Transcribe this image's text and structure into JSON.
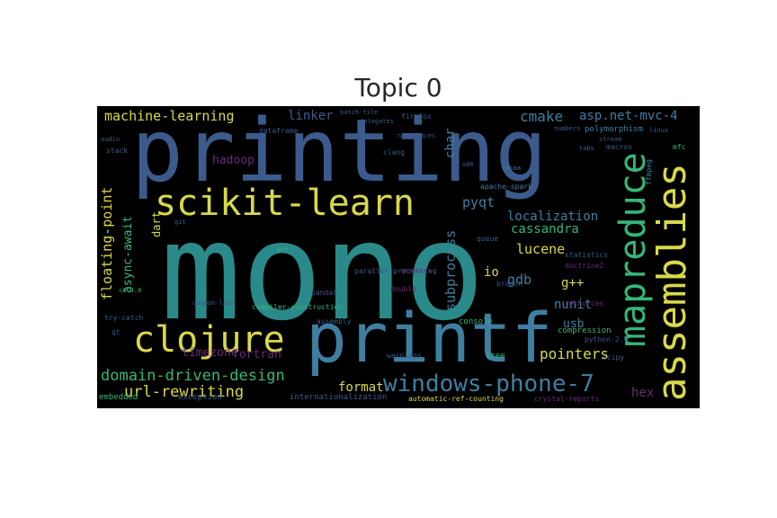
{
  "title": "Topic 0",
  "colors": {
    "background": "#000000",
    "palette": [
      "#3b5b8c",
      "#2a8a8a",
      "#d9d84a",
      "#35b779",
      "#6a2a78",
      "#3e7fa1"
    ]
  },
  "words": [
    "mono",
    "printing",
    "printf",
    "scikit-learn",
    "assemblies",
    "mapreduce",
    "clojure",
    "windows-phone-7",
    "domain-driven-design",
    "url-rewriting",
    "machine-learning",
    "cmake",
    "asp.net-mvc-4",
    "localization",
    "cassandra",
    "pyqt",
    "lucene",
    "gdb",
    "nunit",
    "g++",
    "pointers",
    "format",
    "hex",
    "usb",
    "io",
    "subprocess",
    "floating-point",
    "async-await",
    "dart",
    "hadoop",
    "linker",
    "timezone",
    "fortran",
    "char",
    "console",
    "compression",
    "tree",
    "internationalization",
    "exception",
    "embedded",
    "automatic-ref-counting",
    "crystal-reports",
    "warnings",
    "assembly",
    "double",
    "pandas",
    "statistics",
    "doctrine2",
    "resources",
    "macros",
    "polymorphism",
    "linux",
    "mfc",
    "ffmpeg",
    "stream",
    "firefox",
    "dataframe",
    "delegates",
    "batch-file",
    "stack",
    "queue",
    "branch",
    "apache-spark",
    "compiler-construction",
    "common-lisp",
    "parallel-processing",
    "graphics",
    "try-catch",
    "python-2.7",
    "scipy",
    "qt",
    "audio",
    "clang",
    "namespaces",
    "x86",
    "numbers",
    "tabs",
    "g++",
    "c#-4.0",
    "git",
    "cocoa"
  ]
}
